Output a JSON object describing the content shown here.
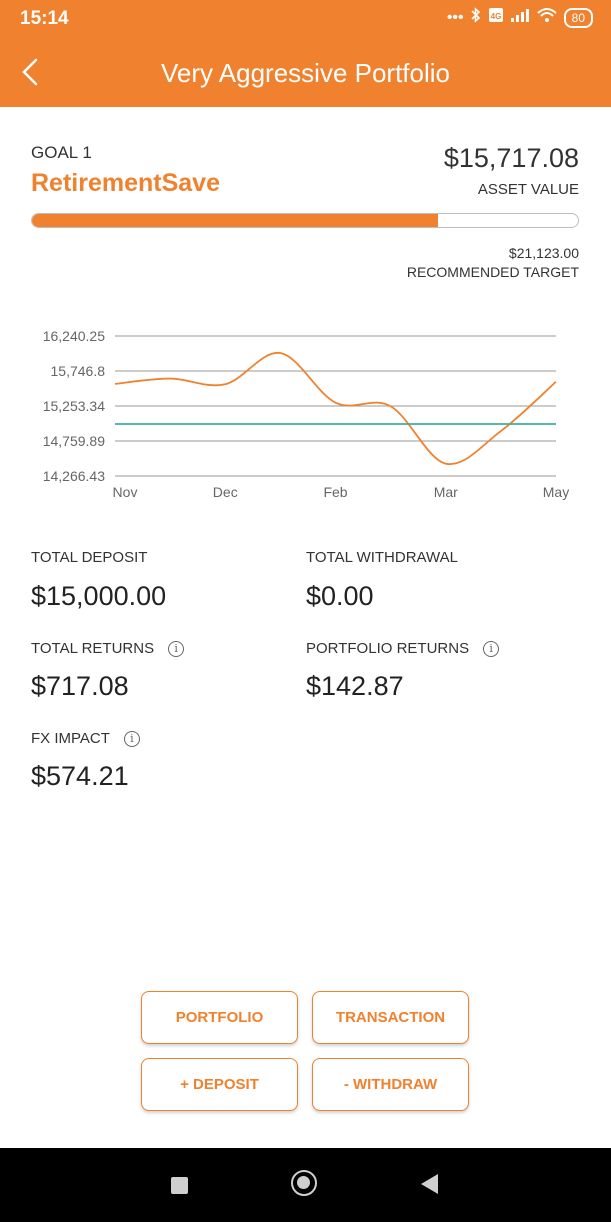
{
  "status_bar": {
    "time": "15:14",
    "icons": [
      "more-dots-icon",
      "bluetooth-icon",
      "volte-icon",
      "signal-icon",
      "wifi-icon"
    ],
    "battery": "80"
  },
  "header": {
    "title": "Very Aggressive Portfolio",
    "back_icon": "chevron-left-icon"
  },
  "goal": {
    "label": "GOAL 1",
    "name": "RetirementSave",
    "asset_value": "$15,717.08",
    "asset_label": "ASSET VALUE",
    "progress_fraction": 0.744,
    "target_value": "$21,123.00",
    "target_label": "RECOMMENDED TARGET"
  },
  "chart_data": {
    "type": "line",
    "x_labels": [
      "Nov",
      "Dec",
      "Feb",
      "Mar",
      "May"
    ],
    "y_ticks": [
      "16,240.25",
      "15,746.8",
      "15,253.34",
      "14,759.89",
      "14,266.43"
    ],
    "ylim": [
      14266.43,
      16240.25
    ],
    "series": [
      {
        "color": "#F0812E",
        "x": [
          0,
          0.5,
          1.0,
          1.5,
          2.0,
          2.5,
          3.0,
          3.5,
          4.0
        ],
        "values": [
          15565,
          15640,
          15560,
          16000,
          15300,
          15250,
          14440,
          14900,
          15595
        ]
      },
      {
        "color": "#3EAFA0",
        "x": [
          0,
          4
        ],
        "values": [
          15000,
          15000
        ]
      }
    ],
    "grid": true
  },
  "stats": {
    "total_deposit_label": "TOTAL DEPOSIT",
    "total_deposit_value": "$15,000.00",
    "total_withdrawal_label": "TOTAL WITHDRAWAL",
    "total_withdrawal_value": "$0.00",
    "total_returns_label": "TOTAL RETURNS",
    "total_returns_value": "$717.08",
    "portfolio_returns_label": "PORTFOLIO RETURNS",
    "portfolio_returns_value": "$142.87",
    "fx_impact_label": "FX IMPACT",
    "fx_impact_value": "$574.21",
    "info_glyph": "i"
  },
  "actions": {
    "portfolio": "PORTFOLIO",
    "transaction": "TRANSACTION",
    "deposit": "+ DEPOSIT",
    "withdraw": "- WITHDRAW"
  },
  "colors": {
    "accent": "#F0812E",
    "baseline": "#3EAFA0"
  }
}
